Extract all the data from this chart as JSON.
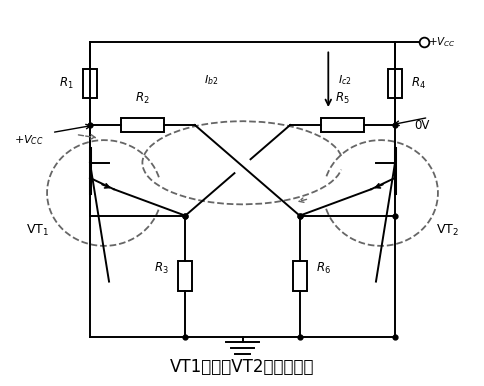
{
  "title": "VT1截止、VT2导通的情况",
  "title_fontsize": 12,
  "bg_color": "#ffffff",
  "line_color": "#000000",
  "dashed_color": "#666666",
  "fig_width": 4.85,
  "fig_height": 3.86,
  "dpi": 100
}
